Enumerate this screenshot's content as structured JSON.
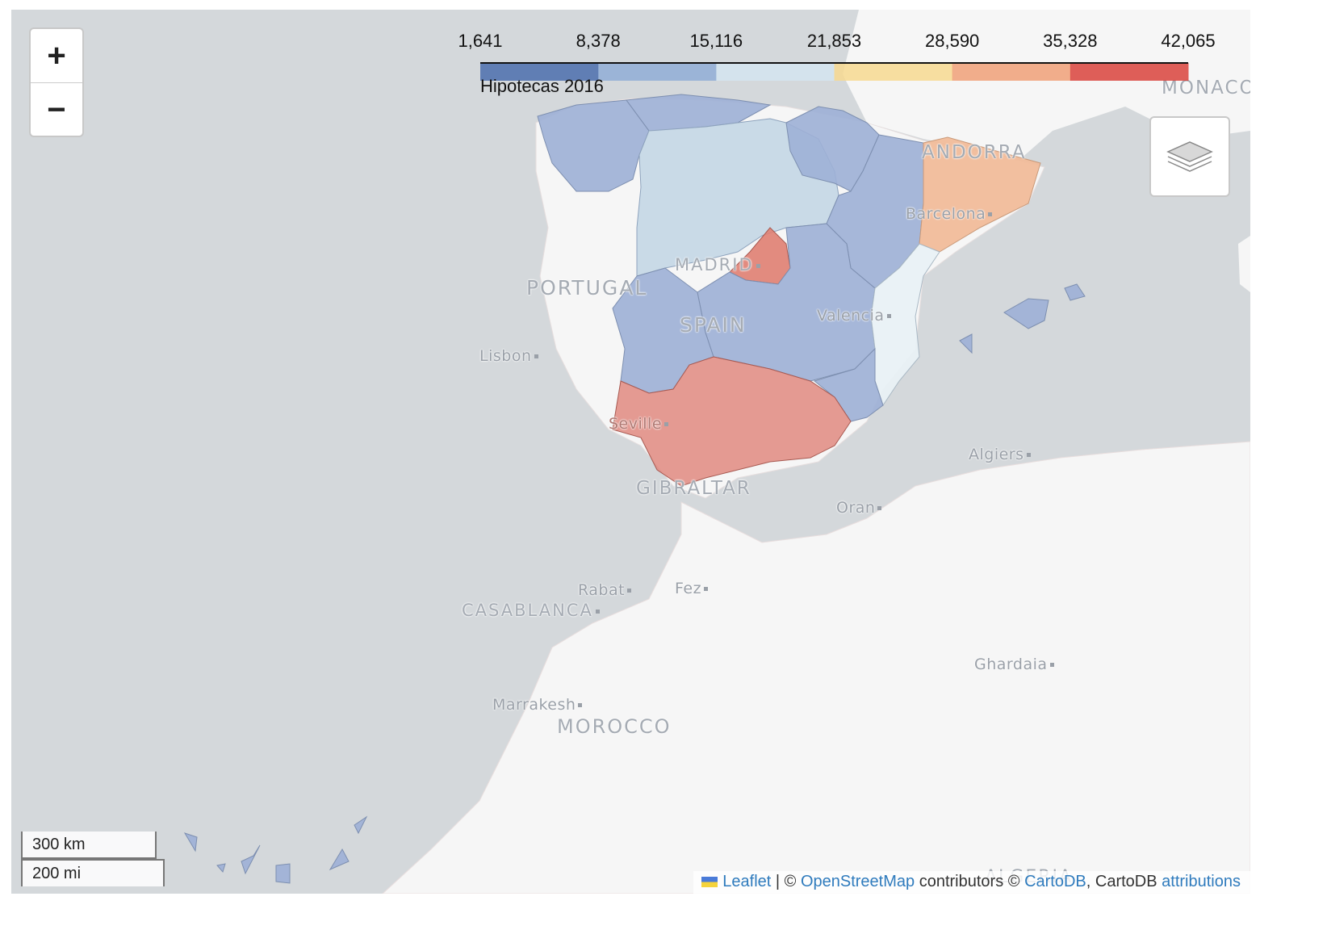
{
  "legend": {
    "ticks": [
      "1,641",
      "8,378",
      "15,116",
      "21,853",
      "28,590",
      "35,328",
      "42,065"
    ],
    "colors": [
      "#4b6fad",
      "#91aed6",
      "#d3e5f0",
      "#f7d990",
      "#f0a078",
      "#d9433c"
    ],
    "caption": "Hipotecas 2016"
  },
  "zoom": {
    "in_label": "+",
    "out_label": "−"
  },
  "layers_control": {
    "icon": "layers-icon"
  },
  "places": {
    "monaco": "MONACO",
    "andorra": "ANDORRA",
    "barcelona": "Barcelona",
    "madrid": "MADRID",
    "portugal": "PORTUGAL",
    "spain": "SPAIN",
    "valencia": "Valencia",
    "lisbon": "Lisbon",
    "seville": "Seville",
    "gibraltar": "GIBRALTAR",
    "algiers": "Algiers",
    "oran": "Oran",
    "rabat": "Rabat",
    "fez": "Fez",
    "casablanca": "CASABLANCA",
    "ghardaia": "Ghardaia",
    "marrakesh": "Marrakesh",
    "morocco": "MOROCCO",
    "algeria": "ALGERIA"
  },
  "choropleth_colors": {
    "low": "#9db0d6",
    "lower_mid": "#c6d8e6",
    "mid": "#e9f1f5",
    "upper": "#f1bc9a",
    "high": "#e09a92"
  },
  "scale": {
    "km": "300 km",
    "mi": "200 mi"
  },
  "attribution": {
    "leaflet": "Leaflet",
    "sep1": "| ©",
    "osm": "OpenStreetMap",
    "contrib": "contributors ©",
    "carto": "CartoDB",
    "carto2": ", CartoDB",
    "attributions": "attributions"
  }
}
